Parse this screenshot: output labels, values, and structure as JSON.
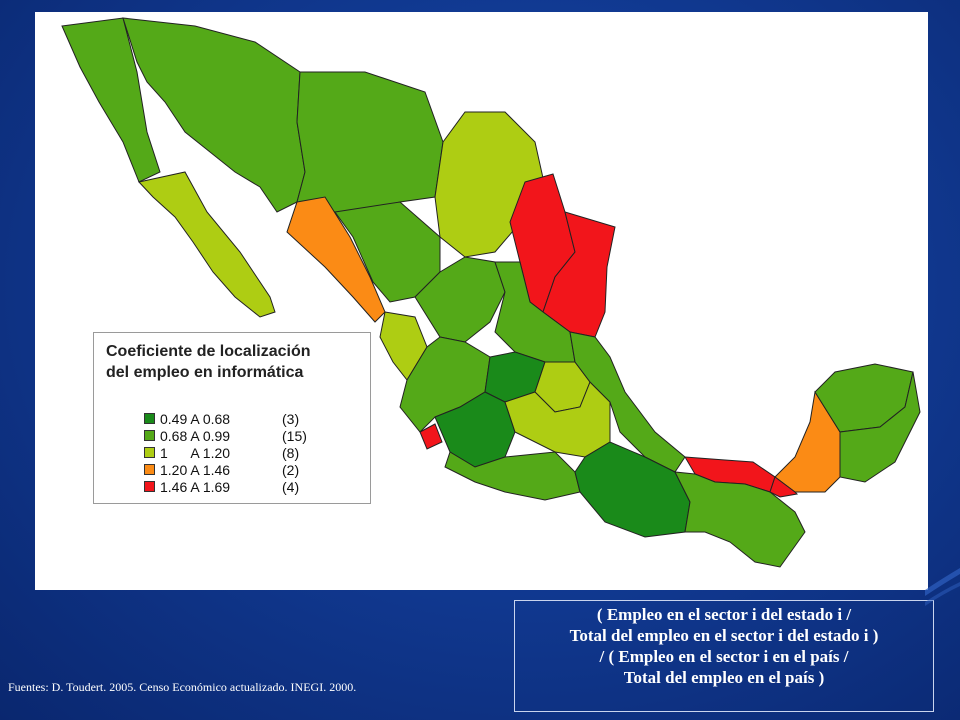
{
  "legend": {
    "title_line1": "Coeficiente de localización",
    "title_line2": "del empleo en informática",
    "items": [
      {
        "range": "0.49 A 0.68",
        "count": "(3)",
        "color": "#1a8a1a"
      },
      {
        "range": "0.68 A 0.99",
        "count": "(15)",
        "color": "#54a918"
      },
      {
        "range": "1      A 1.20",
        "count": "(8)",
        "color": "#aecd13"
      },
      {
        "range": "1.20 A 1.46",
        "count": "(2)",
        "color": "#fb8b15"
      },
      {
        "range": "1.46 A 1.69",
        "count": "(4)",
        "color": "#f2151b"
      }
    ]
  },
  "formula": {
    "line1": "( Empleo en el sector i del estado i /",
    "line2": "Total del empleo en el sector i del estado i )",
    "line3": "/ ( Empleo en el sector i en el país /",
    "line4": "Total del empleo en el país )"
  },
  "source": "Fuentes: D. Toudert. 2005. Censo Económico actualizado. INEGI. 2000.",
  "colors": {
    "background": "#113a93",
    "map_background": "#ffffff",
    "border": "#222222"
  }
}
